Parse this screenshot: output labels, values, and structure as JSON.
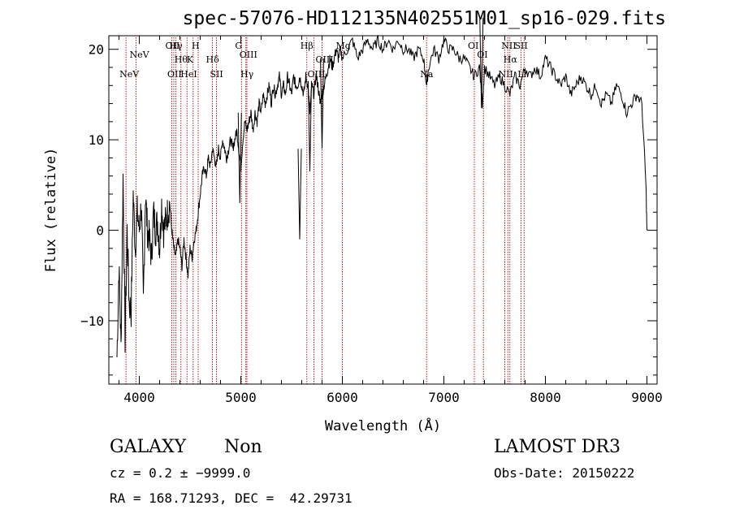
{
  "chart_data": {
    "type": "line",
    "title": "spec-57076-HD112135N402551M01_sp16-029.fits",
    "xlabel": "Wavelength (Å)",
    "ylabel": "Flux (relative)",
    "xlim": [
      3700,
      9100
    ],
    "ylim": [
      -17,
      21.5
    ],
    "xticks": [
      4000,
      5000,
      6000,
      7000,
      8000,
      9000
    ],
    "yticks": [
      -10,
      0,
      10,
      20
    ],
    "xtick_labels": [
      "4000",
      "5000",
      "6000",
      "7000",
      "8000",
      "9000"
    ],
    "ytick_labels": [
      "−10",
      "0",
      "10",
      "20"
    ],
    "series": [
      {
        "name": "flux",
        "x": [
          3780,
          3800,
          3820,
          3840,
          3860,
          3880,
          3900,
          3920,
          3940,
          3960,
          3980,
          4000,
          4020,
          4040,
          4060,
          4080,
          4100,
          4120,
          4140,
          4160,
          4180,
          4200,
          4220,
          4240,
          4260,
          4280,
          4300,
          4320,
          4340,
          4360,
          4380,
          4400,
          4420,
          4440,
          4460,
          4480,
          4500,
          4520,
          4540,
          4560,
          4580,
          4600,
          4620,
          4640,
          4660,
          4680,
          4700,
          4720,
          4740,
          4760,
          4780,
          4800,
          4820,
          4840,
          4860,
          4880,
          4900,
          4920,
          4940,
          4960,
          4980,
          5000,
          5020,
          5040,
          5060,
          5080,
          5100,
          5120,
          5140,
          5160,
          5180,
          5200,
          5220,
          5240,
          5260,
          5280,
          5300,
          5320,
          5340,
          5360,
          5380,
          5400,
          5420,
          5440,
          5460,
          5480,
          5500,
          5520,
          5540,
          5560,
          5580,
          5600,
          5620,
          5640,
          5660,
          5680,
          5700,
          5720,
          5740,
          5760,
          5780,
          5800,
          5820,
          5840,
          5860,
          5880,
          5900,
          5920,
          5940,
          5960,
          5980,
          6000,
          6050,
          6100,
          6150,
          6200,
          6250,
          6300,
          6350,
          6400,
          6450,
          6500,
          6550,
          6600,
          6650,
          6700,
          6750,
          6800,
          6830,
          6850,
          6900,
          6950,
          7000,
          7050,
          7100,
          7150,
          7200,
          7250,
          7300,
          7350,
          7380,
          7400,
          7450,
          7500,
          7550,
          7600,
          7650,
          7700,
          7750,
          7800,
          7850,
          7900,
          7950,
          8000,
          8050,
          8100,
          8150,
          8200,
          8250,
          8300,
          8350,
          8400,
          8450,
          8500,
          8550,
          8600,
          8650,
          8700,
          8750,
          8800,
          8850,
          8900,
          8950,
          8990,
          9000
        ],
        "y": [
          -14,
          -4,
          -13,
          6,
          -12,
          0,
          -8,
          -9,
          4,
          -2,
          2,
          0,
          3,
          -8,
          4,
          0,
          -1,
          -3,
          2,
          0,
          1,
          -2,
          3,
          0,
          1,
          2,
          3,
          0,
          -2,
          -3,
          -1,
          -2,
          -4,
          -1,
          -3,
          -5,
          -2,
          -3,
          -1,
          0,
          2,
          4,
          6,
          7,
          6,
          8,
          7,
          9,
          8,
          7,
          9,
          8,
          10,
          9,
          8,
          9,
          10,
          9,
          10,
          11,
          9,
          7,
          10,
          12,
          11,
          12,
          13,
          11,
          13,
          12,
          14,
          13,
          15,
          14,
          15,
          16,
          14,
          16,
          15,
          16,
          17,
          15,
          16,
          15,
          17,
          16,
          15,
          17,
          16,
          16,
          17,
          16,
          15,
          17,
          16,
          13,
          16,
          15,
          17,
          16,
          14,
          15,
          16,
          17,
          18,
          19,
          18,
          19,
          20,
          19,
          20,
          19,
          20,
          21,
          19,
          20,
          21,
          20,
          21,
          20,
          21,
          20,
          21,
          20,
          20,
          19,
          20,
          19,
          16,
          18,
          20,
          19,
          21,
          20,
          20,
          19,
          19,
          18,
          17,
          18,
          14,
          18,
          17,
          16,
          17,
          16,
          15,
          17,
          16,
          18,
          17,
          18,
          17,
          19,
          18,
          17,
          16,
          17,
          15,
          16,
          17,
          16,
          15,
          16,
          14,
          15,
          14,
          16,
          15,
          13,
          14,
          15,
          14,
          5,
          0
        ]
      }
    ],
    "dips": [
      {
        "x": 5580,
        "y": -1
      },
      {
        "x": 5680,
        "y": 6.5
      },
      {
        "x": 5800,
        "y": 9
      },
      {
        "x": 7370,
        "y": 13.5
      },
      {
        "x": 4990,
        "y": 3
      }
    ],
    "lines": [
      {
        "x": 3869,
        "label": "NeV",
        "row": 3
      },
      {
        "x": 3968,
        "label": "NeV",
        "row": 1
      },
      {
        "x": 4320,
        "label": "OII",
        "row": 0
      },
      {
        "x": 4340,
        "label": "OII",
        "row": 3
      },
      {
        "x": 4360,
        "label": "Hγ",
        "row": 0
      },
      {
        "x": 4410,
        "label": "Hθ",
        "row": 2
      },
      {
        "x": 4470,
        "label": "HeI",
        "row": 3
      },
      {
        "x": 4530,
        "label": "K",
        "row": 2
      },
      {
        "x": 4580,
        "label": "H",
        "row": 0
      },
      {
        "x": 4720,
        "label": "Hδ",
        "row": 2
      },
      {
        "x": 4760,
        "label": "SII",
        "row": 3
      },
      {
        "x": 5007,
        "label": "G",
        "row": 0
      },
      {
        "x": 5050,
        "label": "OIII",
        "row": 1
      },
      {
        "x": 5060,
        "label": "Hγ",
        "row": 3
      },
      {
        "x": 5650,
        "label": "Hβ",
        "row": 0
      },
      {
        "x": 5720,
        "label": "OIII",
        "row": 3
      },
      {
        "x": 5800,
        "label": "OIII",
        "row": 2
      },
      {
        "x": 6000,
        "label": "Mg",
        "row": 0
      },
      {
        "x": 6830,
        "label": "Na",
        "row": 3
      },
      {
        "x": 7300,
        "label": "OI",
        "row": 0
      },
      {
        "x": 7390,
        "label": "OI",
        "row": 1
      },
      {
        "x": 7600,
        "label": "NII",
        "row": 3
      },
      {
        "x": 7630,
        "label": "NII",
        "row": 0
      },
      {
        "x": 7650,
        "label": "Hα",
        "row": 2
      },
      {
        "x": 7760,
        "label": "SII",
        "row": 0
      },
      {
        "x": 7790,
        "label": "Li",
        "row": 3
      }
    ]
  },
  "info": {
    "class": "GALAXY",
    "subclass": "Non",
    "survey": "LAMOST DR3",
    "cz": "cz = 0.2 ± −9999.0",
    "obs_date": "Obs-Date: 20150222",
    "radec": "RA = 168.71293, DEC =  42.29731"
  },
  "colors": {
    "line": "#000000",
    "marker": "#b22222"
  }
}
